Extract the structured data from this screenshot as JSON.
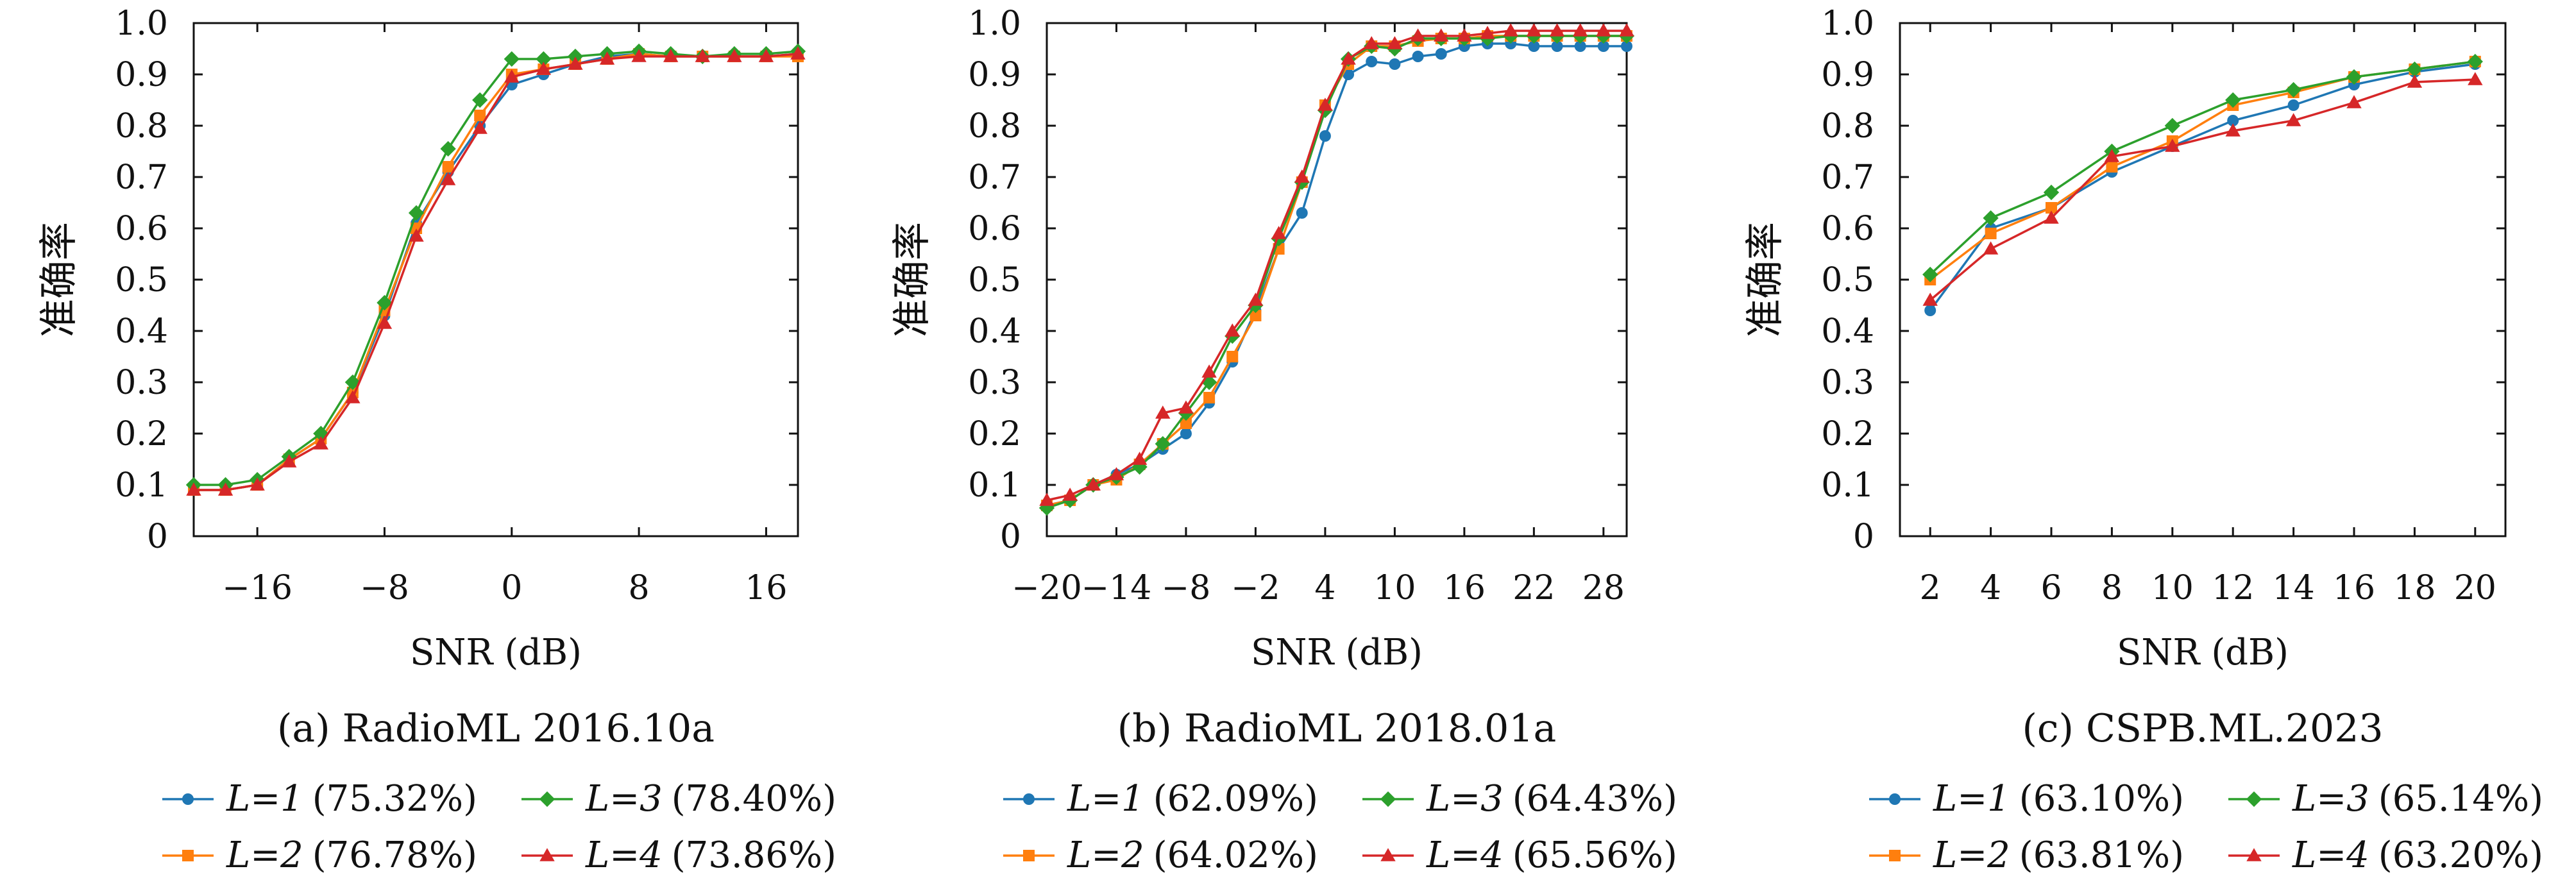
{
  "chart_data": [
    {
      "type": "line",
      "caption": "(a) RadioML 2016.10a",
      "xlabel": "SNR (dB)",
      "ylabel": "准确率",
      "xlim": [
        -20,
        18
      ],
      "ylim": [
        0,
        1.0
      ],
      "xticks": [
        -16,
        -8,
        0,
        8,
        16
      ],
      "xtick_labels": [
        "−16",
        "−8",
        "0",
        "8",
        "16"
      ],
      "yticks": [
        0,
        0.1,
        0.2,
        0.3,
        0.4,
        0.5,
        0.6,
        0.7,
        0.8,
        0.9,
        1.0
      ],
      "ytick_labels": [
        "0",
        "0.1",
        "0.2",
        "0.3",
        "0.4",
        "0.5",
        "0.6",
        "0.7",
        "0.8",
        "0.9",
        "1.0"
      ],
      "grid": false,
      "x": [
        -20,
        -18,
        -16,
        -14,
        -12,
        -10,
        -8,
        -6,
        -4,
        -2,
        0,
        2,
        4,
        6,
        8,
        10,
        12,
        14,
        16,
        18
      ],
      "series": [
        {
          "name": "L=1",
          "accuracy": "(75.32%)",
          "color": "#1f77b4",
          "marker": "circle",
          "values": [
            0.09,
            0.09,
            0.1,
            0.15,
            0.19,
            0.28,
            0.43,
            0.61,
            0.71,
            0.8,
            0.88,
            0.9,
            0.92,
            0.935,
            0.94,
            0.935,
            0.935,
            0.935,
            0.935,
            0.94
          ]
        },
        {
          "name": "L=2",
          "accuracy": "(76.78%)",
          "color": "#ff7f0e",
          "marker": "square",
          "values": [
            0.09,
            0.09,
            0.1,
            0.15,
            0.19,
            0.28,
            0.44,
            0.6,
            0.72,
            0.82,
            0.9,
            0.91,
            0.92,
            0.93,
            0.94,
            0.935,
            0.935,
            0.935,
            0.935,
            0.935
          ]
        },
        {
          "name": "L=3",
          "accuracy": "(78.40%)",
          "color": "#2ca02c",
          "marker": "diamond",
          "values": [
            0.1,
            0.1,
            0.11,
            0.155,
            0.2,
            0.3,
            0.455,
            0.63,
            0.755,
            0.85,
            0.93,
            0.93,
            0.935,
            0.94,
            0.945,
            0.94,
            0.935,
            0.94,
            0.94,
            0.945
          ]
        },
        {
          "name": "L=4",
          "accuracy": "(73.86%)",
          "color": "#d62728",
          "marker": "triangle",
          "values": [
            0.09,
            0.09,
            0.1,
            0.145,
            0.18,
            0.27,
            0.415,
            0.585,
            0.695,
            0.795,
            0.895,
            0.91,
            0.92,
            0.93,
            0.935,
            0.935,
            0.935,
            0.935,
            0.935,
            0.94
          ]
        }
      ]
    },
    {
      "type": "line",
      "caption": "(b) RadioML 2018.01a",
      "xlabel": "SNR (dB)",
      "ylabel": "准确率",
      "xlim": [
        -20,
        30
      ],
      "ylim": [
        0,
        1.0
      ],
      "xticks": [
        -20,
        -14,
        -8,
        -2,
        4,
        10,
        16,
        22,
        28
      ],
      "xtick_labels": [
        "−20",
        "−14",
        "−8",
        "−2",
        "4",
        "10",
        "16",
        "22",
        "28"
      ],
      "yticks": [
        0,
        0.1,
        0.2,
        0.3,
        0.4,
        0.5,
        0.6,
        0.7,
        0.8,
        0.9,
        1.0
      ],
      "ytick_labels": [
        "0",
        "0.1",
        "0.2",
        "0.3",
        "0.4",
        "0.5",
        "0.6",
        "0.7",
        "0.8",
        "0.9",
        "1.0"
      ],
      "grid": false,
      "x": [
        -20,
        -18,
        -16,
        -14,
        -12,
        -10,
        -8,
        -6,
        -4,
        -2,
        0,
        2,
        4,
        6,
        8,
        10,
        12,
        14,
        16,
        18,
        20,
        22,
        24,
        26,
        28,
        30
      ],
      "series": [
        {
          "name": "L=1",
          "accuracy": "(62.09%)",
          "color": "#1f77b4",
          "marker": "circle",
          "values": [
            0.06,
            0.07,
            0.1,
            0.12,
            0.14,
            0.17,
            0.2,
            0.26,
            0.34,
            0.44,
            0.56,
            0.63,
            0.78,
            0.9,
            0.925,
            0.92,
            0.935,
            0.94,
            0.955,
            0.96,
            0.96,
            0.955,
            0.955,
            0.955,
            0.955,
            0.955
          ]
        },
        {
          "name": "L=2",
          "accuracy": "(64.02%)",
          "color": "#ff7f0e",
          "marker": "square",
          "values": [
            0.06,
            0.07,
            0.1,
            0.11,
            0.14,
            0.18,
            0.22,
            0.27,
            0.35,
            0.43,
            0.56,
            0.69,
            0.84,
            0.92,
            0.955,
            0.955,
            0.965,
            0.97,
            0.97,
            0.975,
            0.975,
            0.975,
            0.975,
            0.975,
            0.975,
            0.975
          ]
        },
        {
          "name": "L=3",
          "accuracy": "(64.43%)",
          "color": "#2ca02c",
          "marker": "diamond",
          "values": [
            0.055,
            0.07,
            0.1,
            0.115,
            0.135,
            0.18,
            0.24,
            0.3,
            0.39,
            0.45,
            0.58,
            0.69,
            0.83,
            0.93,
            0.955,
            0.95,
            0.97,
            0.97,
            0.97,
            0.97,
            0.975,
            0.975,
            0.975,
            0.975,
            0.975,
            0.975
          ]
        },
        {
          "name": "L=4",
          "accuracy": "(65.56%)",
          "color": "#d62728",
          "marker": "triangle",
          "values": [
            0.07,
            0.08,
            0.1,
            0.12,
            0.15,
            0.24,
            0.25,
            0.32,
            0.4,
            0.46,
            0.59,
            0.7,
            0.84,
            0.93,
            0.96,
            0.96,
            0.975,
            0.975,
            0.975,
            0.98,
            0.985,
            0.985,
            0.985,
            0.985,
            0.985,
            0.985
          ]
        }
      ]
    },
    {
      "type": "line",
      "caption": "(c) CSPB.ML.2023",
      "xlabel": "SNR (dB)",
      "ylabel": "准确率",
      "xlim": [
        1,
        21
      ],
      "ylim": [
        0,
        1.0
      ],
      "xticks": [
        2,
        4,
        6,
        8,
        10,
        12,
        14,
        16,
        18,
        20
      ],
      "xtick_labels": [
        "2",
        "4",
        "6",
        "8",
        "10",
        "12",
        "14",
        "16",
        "18",
        "20"
      ],
      "yticks": [
        0,
        0.1,
        0.2,
        0.3,
        0.4,
        0.5,
        0.6,
        0.7,
        0.8,
        0.9,
        1.0
      ],
      "ytick_labels": [
        "0",
        "0.1",
        "0.2",
        "0.3",
        "0.4",
        "0.5",
        "0.6",
        "0.7",
        "0.8",
        "0.9",
        "1.0"
      ],
      "grid": false,
      "x": [
        2,
        4,
        6,
        8,
        10,
        12,
        14,
        16,
        18,
        20
      ],
      "series": [
        {
          "name": "L=1",
          "accuracy": "(63.10%)",
          "color": "#1f77b4",
          "marker": "circle",
          "values": [
            0.44,
            0.6,
            0.64,
            0.71,
            0.76,
            0.81,
            0.84,
            0.88,
            0.905,
            0.92
          ]
        },
        {
          "name": "L=2",
          "accuracy": "(63.81%)",
          "color": "#ff7f0e",
          "marker": "square",
          "values": [
            0.5,
            0.59,
            0.64,
            0.72,
            0.77,
            0.84,
            0.865,
            0.895,
            0.91,
            0.925
          ]
        },
        {
          "name": "L=3",
          "accuracy": "(65.14%)",
          "color": "#2ca02c",
          "marker": "diamond",
          "values": [
            0.51,
            0.62,
            0.67,
            0.75,
            0.8,
            0.85,
            0.87,
            0.895,
            0.91,
            0.925
          ]
        },
        {
          "name": "L=4",
          "accuracy": "(63.20%)",
          "color": "#d62728",
          "marker": "triangle",
          "values": [
            0.46,
            0.56,
            0.62,
            0.74,
            0.76,
            0.79,
            0.81,
            0.845,
            0.885,
            0.89
          ]
        }
      ]
    }
  ]
}
